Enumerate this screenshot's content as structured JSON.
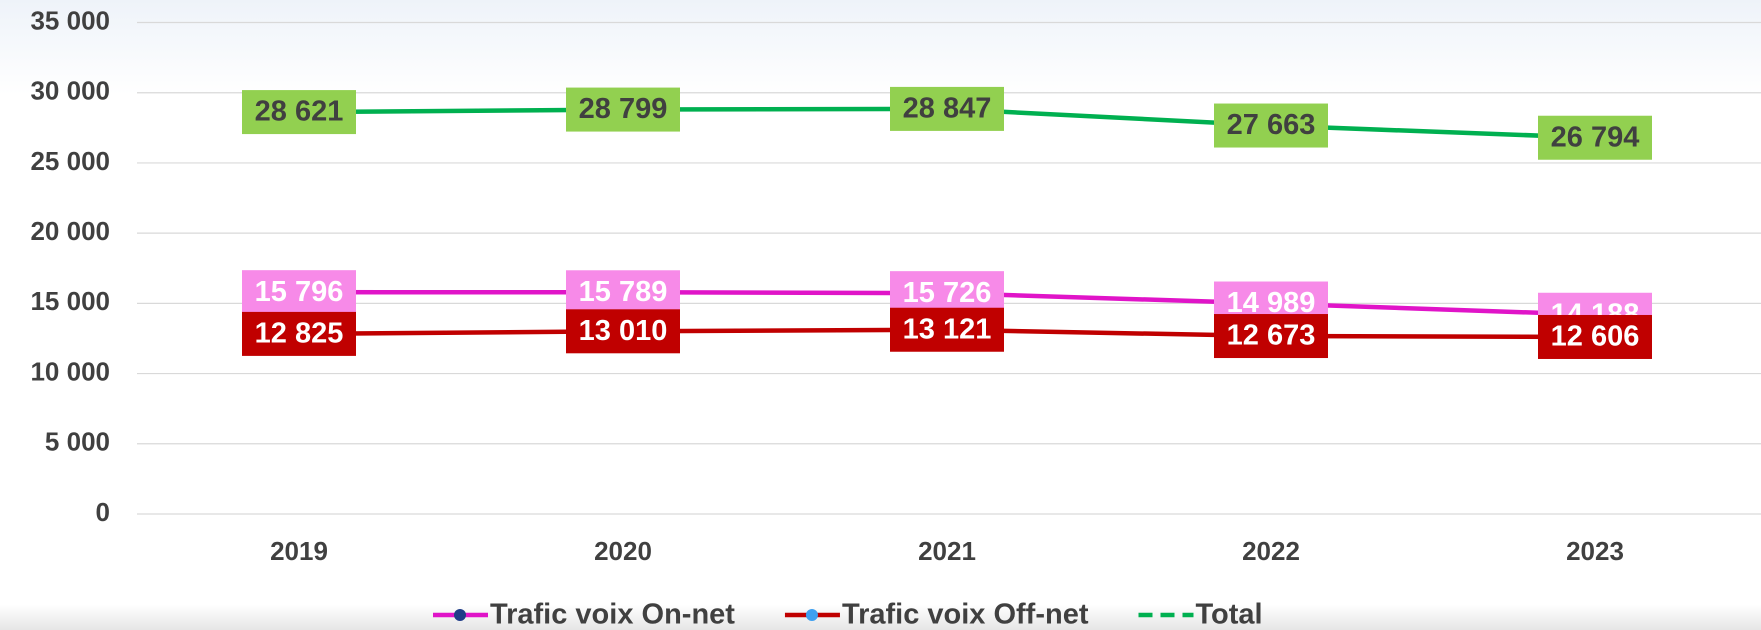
{
  "chart_data": {
    "type": "line",
    "categories": [
      "2019",
      "2020",
      "2021",
      "2022",
      "2023"
    ],
    "series": [
      {
        "name": "Trafic voix On-net",
        "color": "#e014c8",
        "marker_color": "#1f3c88",
        "label_fill": "#f78ae8",
        "label_text_color": "#ffffff",
        "values": [
          15796,
          15789,
          15726,
          14989,
          14188
        ],
        "value_labels": [
          "15 796",
          "15 789",
          "15 726",
          "14 989",
          "14 188"
        ]
      },
      {
        "name": "Trafic voix Off-net",
        "color": "#c00000",
        "marker_color": "#3fa0f0",
        "label_fill": "#c00000",
        "label_text_color": "#ffffff",
        "values": [
          12825,
          13010,
          13121,
          12673,
          12606
        ],
        "value_labels": [
          "12 825",
          "13 010",
          "13 121",
          "12 673",
          "12 606"
        ]
      },
      {
        "name": "Total",
        "color": "#00b050",
        "dashed_legend": true,
        "label_fill": "#92d050",
        "label_text_color": "#404040",
        "values": [
          28621,
          28799,
          28847,
          27663,
          26794
        ],
        "value_labels": [
          "28 621",
          "28 799",
          "28 847",
          "27 663",
          "26 794"
        ]
      }
    ],
    "ylim": [
      0,
      35000
    ],
    "yticks": [
      {
        "value": 0,
        "label": "0"
      },
      {
        "value": 5000,
        "label": "5 000"
      },
      {
        "value": 10000,
        "label": "10 000"
      },
      {
        "value": 15000,
        "label": "15 000"
      },
      {
        "value": 20000,
        "label": "20 000"
      },
      {
        "value": 25000,
        "label": "25 000"
      },
      {
        "value": 30000,
        "label": "30 000"
      },
      {
        "value": 35000,
        "label": "35 000"
      }
    ],
    "grid": true
  }
}
